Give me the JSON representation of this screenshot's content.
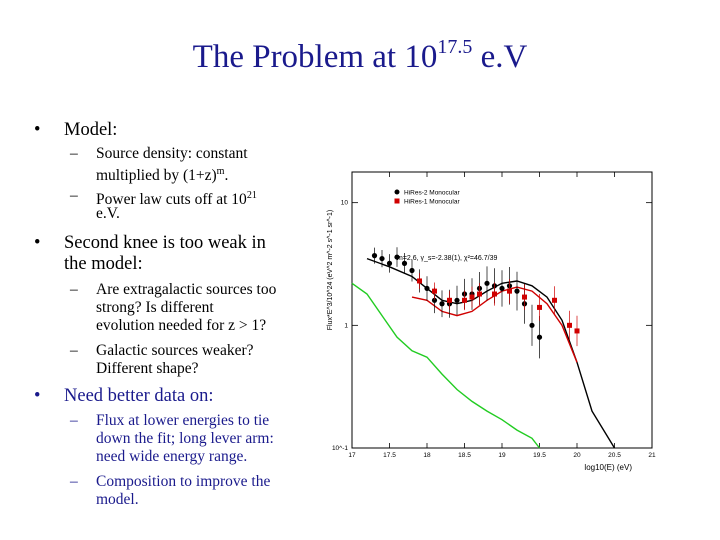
{
  "slide": {
    "title_main": "The Problem at 10",
    "title_exp": "17.5",
    "title_unit": " e.V",
    "bullets": [
      {
        "text": "Model:"
      },
      {
        "text_l1": "Second knee is too weak in",
        "text_l2": "the model:"
      },
      {
        "text": "Need better data on:"
      }
    ],
    "sub1": [
      {
        "l1": "Source density:  constant",
        "l2a": "multiplied by (1+z)",
        "l2sup": "m",
        "l2b": "."
      },
      {
        "l1a": "Power law cuts off at 10",
        "l1sup": "21",
        "l2": "e.V."
      }
    ],
    "sub2": [
      {
        "l1": "Are extragalactic sources too",
        "l2": "strong?  Is different",
        "l3": "evolution needed for z > 1?"
      },
      {
        "l1": "Galactic sources weaker?",
        "l2": "Different shape?"
      }
    ],
    "sub3": [
      {
        "l1": "Flux at lower energies to tie",
        "l2": "down the fit; long lever arm:",
        "l3": "need wide energy range."
      },
      {
        "l1": "Composition to improve the",
        "l2": "model."
      }
    ]
  },
  "chart_data": {
    "type": "scatter",
    "xlabel": "log10(E) (eV)",
    "ylabel": "Flux*E^3/10^24 (eV^2 m^-2 s^-1 sr^-1)",
    "x_ticks": [
      "17",
      "17.5",
      "18",
      "18.5",
      "19",
      "19.5",
      "20",
      "20.5",
      "21"
    ],
    "y_ticks": [
      "10^-1",
      "1",
      "10"
    ],
    "xlim": [
      17,
      21
    ],
    "ylim_log10": [
      -1,
      1.25
    ],
    "annotation": "m=2.6, γ_s=-2.38(1), χ²=46.7/39",
    "series": [
      {
        "name": "HiRes-2 Monocular",
        "color": "#000000",
        "points": [
          [
            17.3,
            3.7
          ],
          [
            17.4,
            3.5
          ],
          [
            17.5,
            3.2
          ],
          [
            17.6,
            3.6
          ],
          [
            17.7,
            3.2
          ],
          [
            17.8,
            2.8
          ],
          [
            17.9,
            2.3
          ],
          [
            18.0,
            2.0
          ],
          [
            18.1,
            1.6
          ],
          [
            18.2,
            1.5
          ],
          [
            18.3,
            1.5
          ],
          [
            18.4,
            1.6
          ],
          [
            18.5,
            1.8
          ],
          [
            18.6,
            1.8
          ],
          [
            18.7,
            2.0
          ],
          [
            18.8,
            2.2
          ],
          [
            18.9,
            2.1
          ],
          [
            19.0,
            2.0
          ],
          [
            19.1,
            2.1
          ],
          [
            19.2,
            1.9
          ],
          [
            19.3,
            1.5
          ],
          [
            19.4,
            1.0
          ],
          [
            19.5,
            0.8
          ]
        ]
      },
      {
        "name": "HiRes-1 Monocular",
        "color": "#d00000",
        "points": [
          [
            17.9,
            2.3
          ],
          [
            18.1,
            1.9
          ],
          [
            18.3,
            1.6
          ],
          [
            18.5,
            1.6
          ],
          [
            18.6,
            1.7
          ],
          [
            18.7,
            1.8
          ],
          [
            18.9,
            1.8
          ],
          [
            19.1,
            1.9
          ],
          [
            19.3,
            1.7
          ],
          [
            19.5,
            1.4
          ],
          [
            19.7,
            1.6
          ],
          [
            19.9,
            1.0
          ],
          [
            20.0,
            0.9
          ]
        ]
      }
    ],
    "curves": [
      {
        "name": "",
        "color": "#000000",
        "points": [
          [
            17.2,
            3.5
          ],
          [
            17.5,
            3.0
          ],
          [
            17.8,
            2.5
          ],
          [
            18.0,
            2.0
          ],
          [
            18.2,
            1.6
          ],
          [
            18.4,
            1.5
          ],
          [
            18.6,
            1.6
          ],
          [
            18.8,
            1.9
          ],
          [
            19.0,
            2.2
          ],
          [
            19.2,
            2.3
          ],
          [
            19.4,
            2.1
          ],
          [
            19.6,
            1.7
          ],
          [
            19.8,
            1.1
          ],
          [
            20.0,
            0.5
          ],
          [
            20.2,
            0.2
          ],
          [
            20.5,
            0.1
          ]
        ]
      },
      {
        "name": "",
        "color": "#d00000",
        "points": [
          [
            17.8,
            1.7
          ],
          [
            18.0,
            1.6
          ],
          [
            18.2,
            1.3
          ],
          [
            18.4,
            1.2
          ],
          [
            18.6,
            1.3
          ],
          [
            18.8,
            1.6
          ],
          [
            19.0,
            1.9
          ],
          [
            19.2,
            2.05
          ],
          [
            19.4,
            1.9
          ],
          [
            19.6,
            1.5
          ],
          [
            19.8,
            1.0
          ],
          [
            20.0,
            0.5
          ]
        ]
      },
      {
        "name": "",
        "color": "#22cc22",
        "points": [
          [
            17.0,
            2.2
          ],
          [
            17.2,
            1.8
          ],
          [
            17.4,
            1.2
          ],
          [
            17.6,
            0.8
          ],
          [
            17.8,
            0.62
          ],
          [
            18.0,
            0.55
          ],
          [
            18.2,
            0.4
          ],
          [
            18.4,
            0.3
          ],
          [
            18.6,
            0.24
          ],
          [
            18.8,
            0.2
          ],
          [
            19.0,
            0.17
          ],
          [
            19.2,
            0.14
          ],
          [
            19.4,
            0.12
          ],
          [
            19.5,
            0.1
          ]
        ]
      }
    ]
  }
}
